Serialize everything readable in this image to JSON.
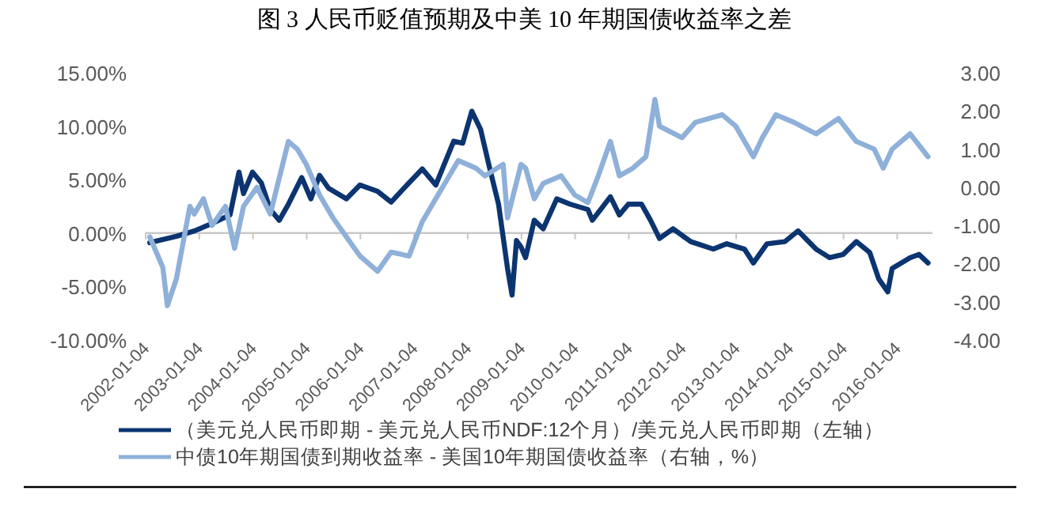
{
  "chart_data": {
    "type": "line",
    "title": "图 3  人民币贬值预期及中美 10 年期国债收益率之差",
    "legend": "bottom",
    "xlim": [
      "2002-01-04",
      "2016-08-31"
    ],
    "xticks": [
      "2002-01-04",
      "2003-01-04",
      "2004-01-04",
      "2005-01-04",
      "2006-01-04",
      "2007-01-04",
      "2008-01-04",
      "2009-01-04",
      "2010-01-04",
      "2011-01-04",
      "2012-01-04",
      "2013-01-04",
      "2014-01-04",
      "2015-01-04",
      "2016-01-04"
    ],
    "ylim": [
      -10,
      15
    ],
    "yticks": [
      {
        "value": -10,
        "label": "-10.00%"
      },
      {
        "value": -5,
        "label": "-5.00%"
      },
      {
        "value": 0,
        "label": "0.00%"
      },
      {
        "value": 5,
        "label": "5.00%"
      },
      {
        "value": 10,
        "label": "10.00%"
      },
      {
        "value": 15,
        "label": "15.00%"
      }
    ],
    "y2lim": [
      -4,
      3
    ],
    "y2ticks": [
      {
        "value": -4,
        "label": "-4.00"
      },
      {
        "value": -3,
        "label": "-3.00"
      },
      {
        "value": -2,
        "label": "-2.00"
      },
      {
        "value": -1,
        "label": "-1.00"
      },
      {
        "value": 0,
        "label": "0.00"
      },
      {
        "value": 1,
        "label": "1.00"
      },
      {
        "value": 2,
        "label": "2.00"
      },
      {
        "value": 3,
        "label": "3.00"
      }
    ],
    "series": [
      {
        "name": "（美元兑人民币即期 - 美元兑人民币NDF:12个月）/美元兑人民币即期（左轴）",
        "color": "#0b3470",
        "x": [
          "2002-02",
          "2002-08",
          "2002-12",
          "2003-04",
          "2003-08",
          "2003-10",
          "2003-11",
          "2004-01",
          "2004-03",
          "2004-05",
          "2004-07",
          "2004-09",
          "2004-12",
          "2005-02",
          "2005-04",
          "2005-06",
          "2005-10",
          "2006-01",
          "2006-05",
          "2006-08",
          "2006-12",
          "2007-03",
          "2007-06",
          "2007-10",
          "2007-12",
          "2008-02",
          "2008-04",
          "2008-06",
          "2008-08",
          "2008-10",
          "2008-11",
          "2008-12",
          "2009-01",
          "2009-02",
          "2009-04",
          "2009-06",
          "2009-09",
          "2009-12",
          "2010-04",
          "2010-05",
          "2010-09",
          "2010-11",
          "2011-01",
          "2011-04",
          "2011-06",
          "2011-08",
          "2011-11",
          "2012-03",
          "2012-08",
          "2012-11",
          "2013-03",
          "2013-05",
          "2013-08",
          "2013-12",
          "2014-03",
          "2014-07",
          "2014-10",
          "2015-01",
          "2015-04",
          "2015-07",
          "2015-09",
          "2015-11",
          "2015-12",
          "2016-04",
          "2016-06",
          "2016-08"
        ],
        "values": [
          -0.9,
          -0.3,
          0.2,
          0.9,
          1.7,
          5.7,
          3.7,
          5.7,
          4.7,
          2.2,
          1.2,
          2.7,
          5.2,
          3.2,
          5.4,
          4.2,
          3.2,
          4.5,
          3.9,
          2.9,
          4.7,
          6.0,
          4.5,
          8.6,
          8.4,
          11.4,
          9.7,
          6.1,
          2.7,
          -3.3,
          -5.8,
          -0.7,
          -1.3,
          -2.3,
          1.2,
          0.4,
          3.2,
          2.7,
          2.2,
          1.2,
          3.4,
          1.7,
          2.7,
          2.7,
          1.2,
          -0.5,
          0.4,
          -0.8,
          -1.5,
          -1.0,
          -1.5,
          -2.8,
          -1.0,
          -0.8,
          0.2,
          -1.5,
          -2.3,
          -2.0,
          -0.8,
          -1.8,
          -4.3,
          -5.5,
          -3.3,
          -2.3,
          -2.0,
          -2.8
        ]
      },
      {
        "name": "中债10年期国债到期收益率 - 美国10年期国债收益率（右轴，%）",
        "color": "#8eb0d9",
        "axis": "y2",
        "x": [
          "2002-02",
          "2002-05",
          "2002-06",
          "2002-08",
          "2002-11",
          "2002-12",
          "2003-02",
          "2003-04",
          "2003-07",
          "2003-09",
          "2003-11",
          "2004-02",
          "2004-05",
          "2004-09",
          "2004-11",
          "2005-01",
          "2005-04",
          "2005-07",
          "2005-10",
          "2006-01",
          "2006-05",
          "2006-08",
          "2006-12",
          "2007-03",
          "2007-08",
          "2007-11",
          "2008-03",
          "2008-05",
          "2008-09",
          "2008-10",
          "2009-01",
          "2009-02",
          "2009-04",
          "2009-06",
          "2009-10",
          "2010-01",
          "2010-04",
          "2010-06",
          "2010-09",
          "2010-11",
          "2011-02",
          "2011-05",
          "2011-07",
          "2011-08",
          "2012-01",
          "2012-04",
          "2012-10",
          "2013-01",
          "2013-05",
          "2013-07",
          "2013-10",
          "2014-02",
          "2014-07",
          "2014-12",
          "2015-04",
          "2015-08",
          "2015-10",
          "2015-12",
          "2016-04",
          "2016-08"
        ],
        "values": [
          -1.3,
          -2.1,
          -3.1,
          -2.4,
          -0.5,
          -0.7,
          -0.3,
          -1.0,
          -0.5,
          -1.6,
          -0.5,
          0.0,
          -0.7,
          1.2,
          1.0,
          0.6,
          -0.2,
          -0.8,
          -1.3,
          -1.8,
          -2.2,
          -1.7,
          -1.8,
          -0.9,
          0.1,
          0.7,
          0.5,
          0.3,
          0.6,
          -0.8,
          0.6,
          0.5,
          -0.3,
          0.1,
          0.3,
          -0.2,
          -0.4,
          0.2,
          1.2,
          0.3,
          0.5,
          0.8,
          2.3,
          1.6,
          1.3,
          1.7,
          1.9,
          1.6,
          0.8,
          1.3,
          1.9,
          1.7,
          1.4,
          1.8,
          1.2,
          1.0,
          0.5,
          1.0,
          1.4,
          0.8
        ]
      }
    ]
  }
}
